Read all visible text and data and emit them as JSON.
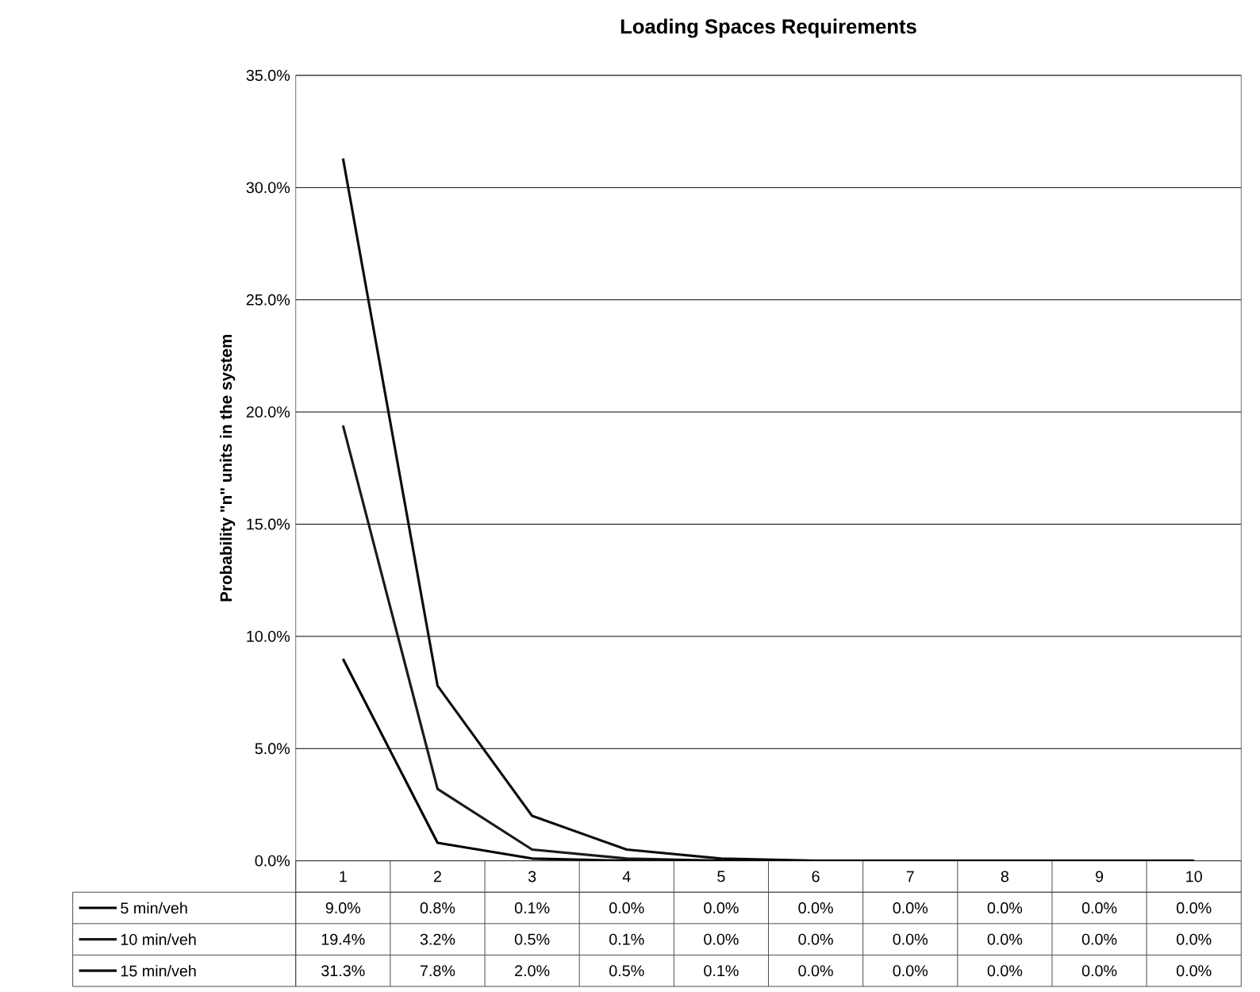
{
  "chart_data": {
    "type": "line",
    "title": "Loading Spaces Requirements",
    "ylabel": "Probability \"n\" units in the system",
    "categories": [
      "1",
      "2",
      "3",
      "4",
      "5",
      "6",
      "7",
      "8",
      "9",
      "10"
    ],
    "series": [
      {
        "name": "5 min/veh",
        "color": "#000000",
        "values": [
          9.0,
          0.8,
          0.1,
          0.0,
          0.0,
          0.0,
          0.0,
          0.0,
          0.0,
          0.0
        ],
        "value_labels": [
          "9.0%",
          "0.8%",
          "0.1%",
          "0.0%",
          "0.0%",
          "0.0%",
          "0.0%",
          "0.0%",
          "0.0%",
          "0.0%"
        ]
      },
      {
        "name": "10 min/veh",
        "color": "#1a1a1a",
        "values": [
          19.4,
          3.2,
          0.5,
          0.1,
          0.0,
          0.0,
          0.0,
          0.0,
          0.0,
          0.0
        ],
        "value_labels": [
          "19.4%",
          "3.2%",
          "0.5%",
          "0.1%",
          "0.0%",
          "0.0%",
          "0.0%",
          "0.0%",
          "0.0%",
          "0.0%"
        ]
      },
      {
        "name": "15 min/veh",
        "color": "#0d0d0d",
        "values": [
          31.3,
          7.8,
          2.0,
          0.5,
          0.1,
          0.0,
          0.0,
          0.0,
          0.0,
          0.0
        ],
        "value_labels": [
          "31.3%",
          "7.8%",
          "2.0%",
          "0.5%",
          "0.1%",
          "0.0%",
          "0.0%",
          "0.0%",
          "0.0%",
          "0.0%"
        ]
      }
    ],
    "ylim": [
      0,
      35
    ],
    "yticks": [
      {
        "value": 0,
        "label": "0.0%"
      },
      {
        "value": 5,
        "label": "5.0%"
      },
      {
        "value": 10,
        "label": "10.0%"
      },
      {
        "value": 15,
        "label": "15.0%"
      },
      {
        "value": 20,
        "label": "20.0%"
      },
      {
        "value": 25,
        "label": "25.0%"
      },
      {
        "value": 30,
        "label": "30.0%"
      },
      {
        "value": 35,
        "label": "35.0%"
      }
    ],
    "grid": "y",
    "legend": "bottom"
  }
}
